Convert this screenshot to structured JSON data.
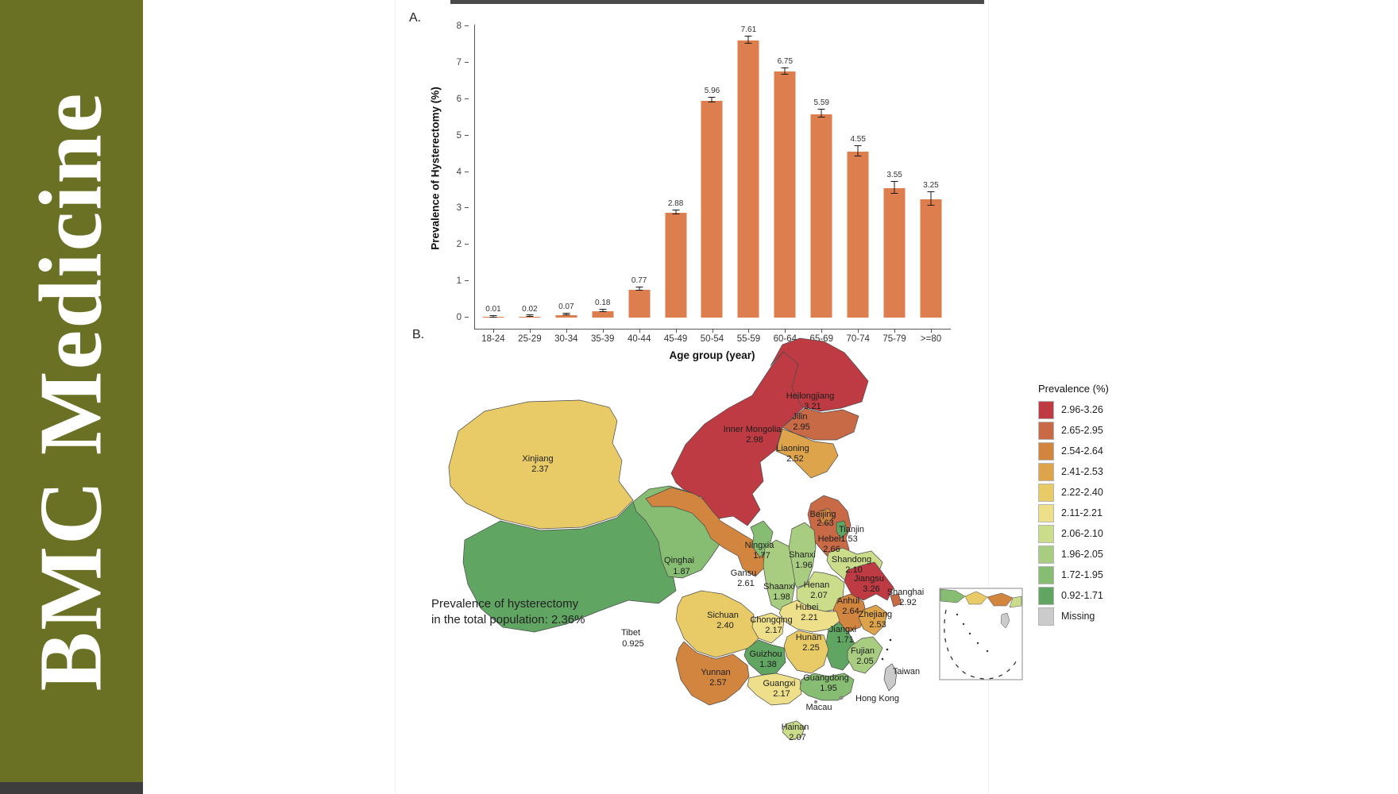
{
  "sidebar": {
    "journal": "BMC Medicine",
    "bg_color": "#6b7124"
  },
  "panels": {
    "a_label": "A.",
    "b_label": "B."
  },
  "chart_data": {
    "type": "bar",
    "title": "",
    "xlabel": "Age group (year)",
    "ylabel": "Prevalence of Hysterectomy (%)",
    "ylim": [
      0,
      8
    ],
    "yticks": [
      0,
      1,
      2,
      3,
      4,
      5,
      6,
      7,
      8
    ],
    "grid": false,
    "bar_color": "#dd7e4e",
    "categories": [
      "18-24",
      "25-29",
      "30-34",
      "35-39",
      "40-44",
      "45-49",
      "50-54",
      "55-59",
      "60-64",
      "65-69",
      "70-74",
      "75-79",
      ">=80"
    ],
    "values": [
      0.01,
      0.02,
      0.07,
      0.18,
      0.77,
      2.88,
      5.96,
      7.61,
      6.75,
      5.59,
      4.55,
      3.55,
      3.25
    ],
    "labels": [
      "0.01",
      "0.02",
      "0.07",
      "0.18",
      "0.77",
      "2.88",
      "5.96",
      "7.61",
      "6.75",
      "5.59",
      "4.55",
      "3.55",
      "3.25"
    ],
    "errors": [
      0.005,
      0.005,
      0.01,
      0.02,
      0.03,
      0.04,
      0.06,
      0.08,
      0.08,
      0.09,
      0.13,
      0.15,
      0.18
    ]
  },
  "map": {
    "annotation": {
      "line1": "Prevalence of hysterectomy",
      "line2": "in the total population: 2.36%"
    },
    "legend": {
      "title": "Prevalence (%)",
      "items": [
        {
          "label": "2.96-3.26",
          "color": "#bf3b43"
        },
        {
          "label": "2.65-2.95",
          "color": "#c96a47"
        },
        {
          "label": "2.54-2.64",
          "color": "#d1853f"
        },
        {
          "label": "2.41-2.53",
          "color": "#dda44b"
        },
        {
          "label": "2.22-2.40",
          "color": "#e8cb66"
        },
        {
          "label": "2.11-2.21",
          "color": "#eee08b"
        },
        {
          "label": "2.06-2.10",
          "color": "#cbdc8b"
        },
        {
          "label": "1.96-2.05",
          "color": "#a9cd80"
        },
        {
          "label": "1.72-1.95",
          "color": "#87bd72"
        },
        {
          "label": "0.92-1.71",
          "color": "#60a562"
        },
        {
          "label": "Missing",
          "color": "#cbcbcb"
        }
      ]
    },
    "provinces": [
      {
        "name": "Heilongjiang",
        "value": "3.21",
        "color": "#bf3b43"
      },
      {
        "name": "Jilin",
        "value": "2.95",
        "color": "#c96a47"
      },
      {
        "name": "Liaoning",
        "value": "2.52",
        "color": "#dda44b"
      },
      {
        "name": "Inner Mongolia",
        "value": "2.98",
        "color": "#bf3b43"
      },
      {
        "name": "Xinjiang",
        "value": "2.37",
        "color": "#e8cb66"
      },
      {
        "name": "Beijing",
        "value": "2.63",
        "color": "#d1853f"
      },
      {
        "name": "Tianjin",
        "value": "1.53",
        "color": "#60a562"
      },
      {
        "name": "Hebei",
        "value": "2.66",
        "color": "#c96a47"
      },
      {
        "name": "Shanxi",
        "value": "1.96",
        "color": "#a9cd80"
      },
      {
        "name": "Shandong",
        "value": "2.10",
        "color": "#cbdc8b"
      },
      {
        "name": "Henan",
        "value": "2.07",
        "color": "#cbdc8b"
      },
      {
        "name": "Jiangsu",
        "value": "3.26",
        "color": "#bf3b43"
      },
      {
        "name": "Shanghai",
        "value": "2.92",
        "color": "#c96a47"
      },
      {
        "name": "Anhui",
        "value": "2.64",
        "color": "#d1853f"
      },
      {
        "name": "Zhejiang",
        "value": "2.53",
        "color": "#dda44b"
      },
      {
        "name": "Hubei",
        "value": "2.21",
        "color": "#eee08b"
      },
      {
        "name": "Chongqing",
        "value": "2.17",
        "color": "#eee08b"
      },
      {
        "name": "Sichuan",
        "value": "2.40",
        "color": "#e8cb66"
      },
      {
        "name": "Ningxia",
        "value": "1.77",
        "color": "#87bd72"
      },
      {
        "name": "Gansu",
        "value": "2.61",
        "color": "#d1853f"
      },
      {
        "name": "Qinghai",
        "value": "1.87",
        "color": "#87bd72"
      },
      {
        "name": "Shaanxi",
        "value": "1.98",
        "color": "#a9cd80"
      },
      {
        "name": "Tibet",
        "value": "0.925",
        "color": "#60a562"
      },
      {
        "name": "Hunan",
        "value": "2.25",
        "color": "#e8cb66"
      },
      {
        "name": "Jiangxi",
        "value": "1.71",
        "color": "#60a562"
      },
      {
        "name": "Guizhou",
        "value": "1.38",
        "color": "#60a562"
      },
      {
        "name": "Yunnan",
        "value": "2.57",
        "color": "#d1853f"
      },
      {
        "name": "Guangxi",
        "value": "2.17",
        "color": "#eee08b"
      },
      {
        "name": "Guangdong",
        "value": "1.95",
        "color": "#87bd72"
      },
      {
        "name": "Fujian",
        "value": "2.05",
        "color": "#a9cd80"
      },
      {
        "name": "Hainan",
        "value": "2.07",
        "color": "#cbdc8b"
      },
      {
        "name": "Taiwan",
        "value": "",
        "color": "#cbcbcb"
      },
      {
        "name": "Hong Kong",
        "value": "",
        "color": "#cbcbcb"
      },
      {
        "name": "Macau",
        "value": "",
        "color": "#cbcbcb"
      }
    ]
  }
}
